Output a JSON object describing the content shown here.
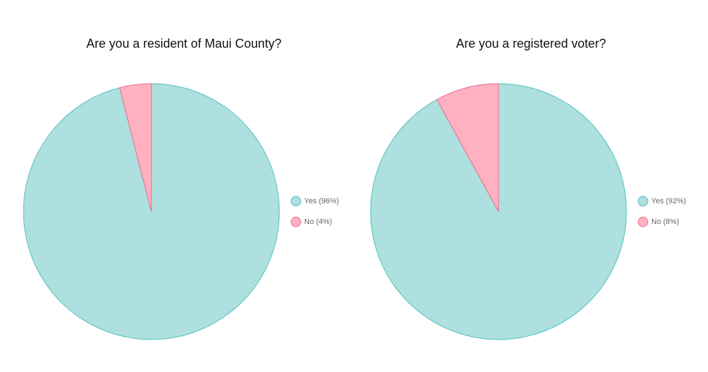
{
  "chart_data": [
    {
      "type": "pie",
      "title": "Are you a resident of Maui County?",
      "categories": [
        "Yes (96%)",
        "No (4%)"
      ],
      "values": [
        96,
        4
      ],
      "colors": [
        "#ade0de",
        "#ffb1c1"
      ],
      "border_colors": [
        "#4dbfbd",
        "#f0688a"
      ]
    },
    {
      "type": "pie",
      "title": "Are you a registered voter?",
      "categories": [
        "Yes (92%)",
        "No (8%)"
      ],
      "values": [
        92,
        8
      ],
      "colors": [
        "#ade0de",
        "#ffb1c1"
      ],
      "border_colors": [
        "#4dbfbd",
        "#f0688a"
      ]
    }
  ]
}
